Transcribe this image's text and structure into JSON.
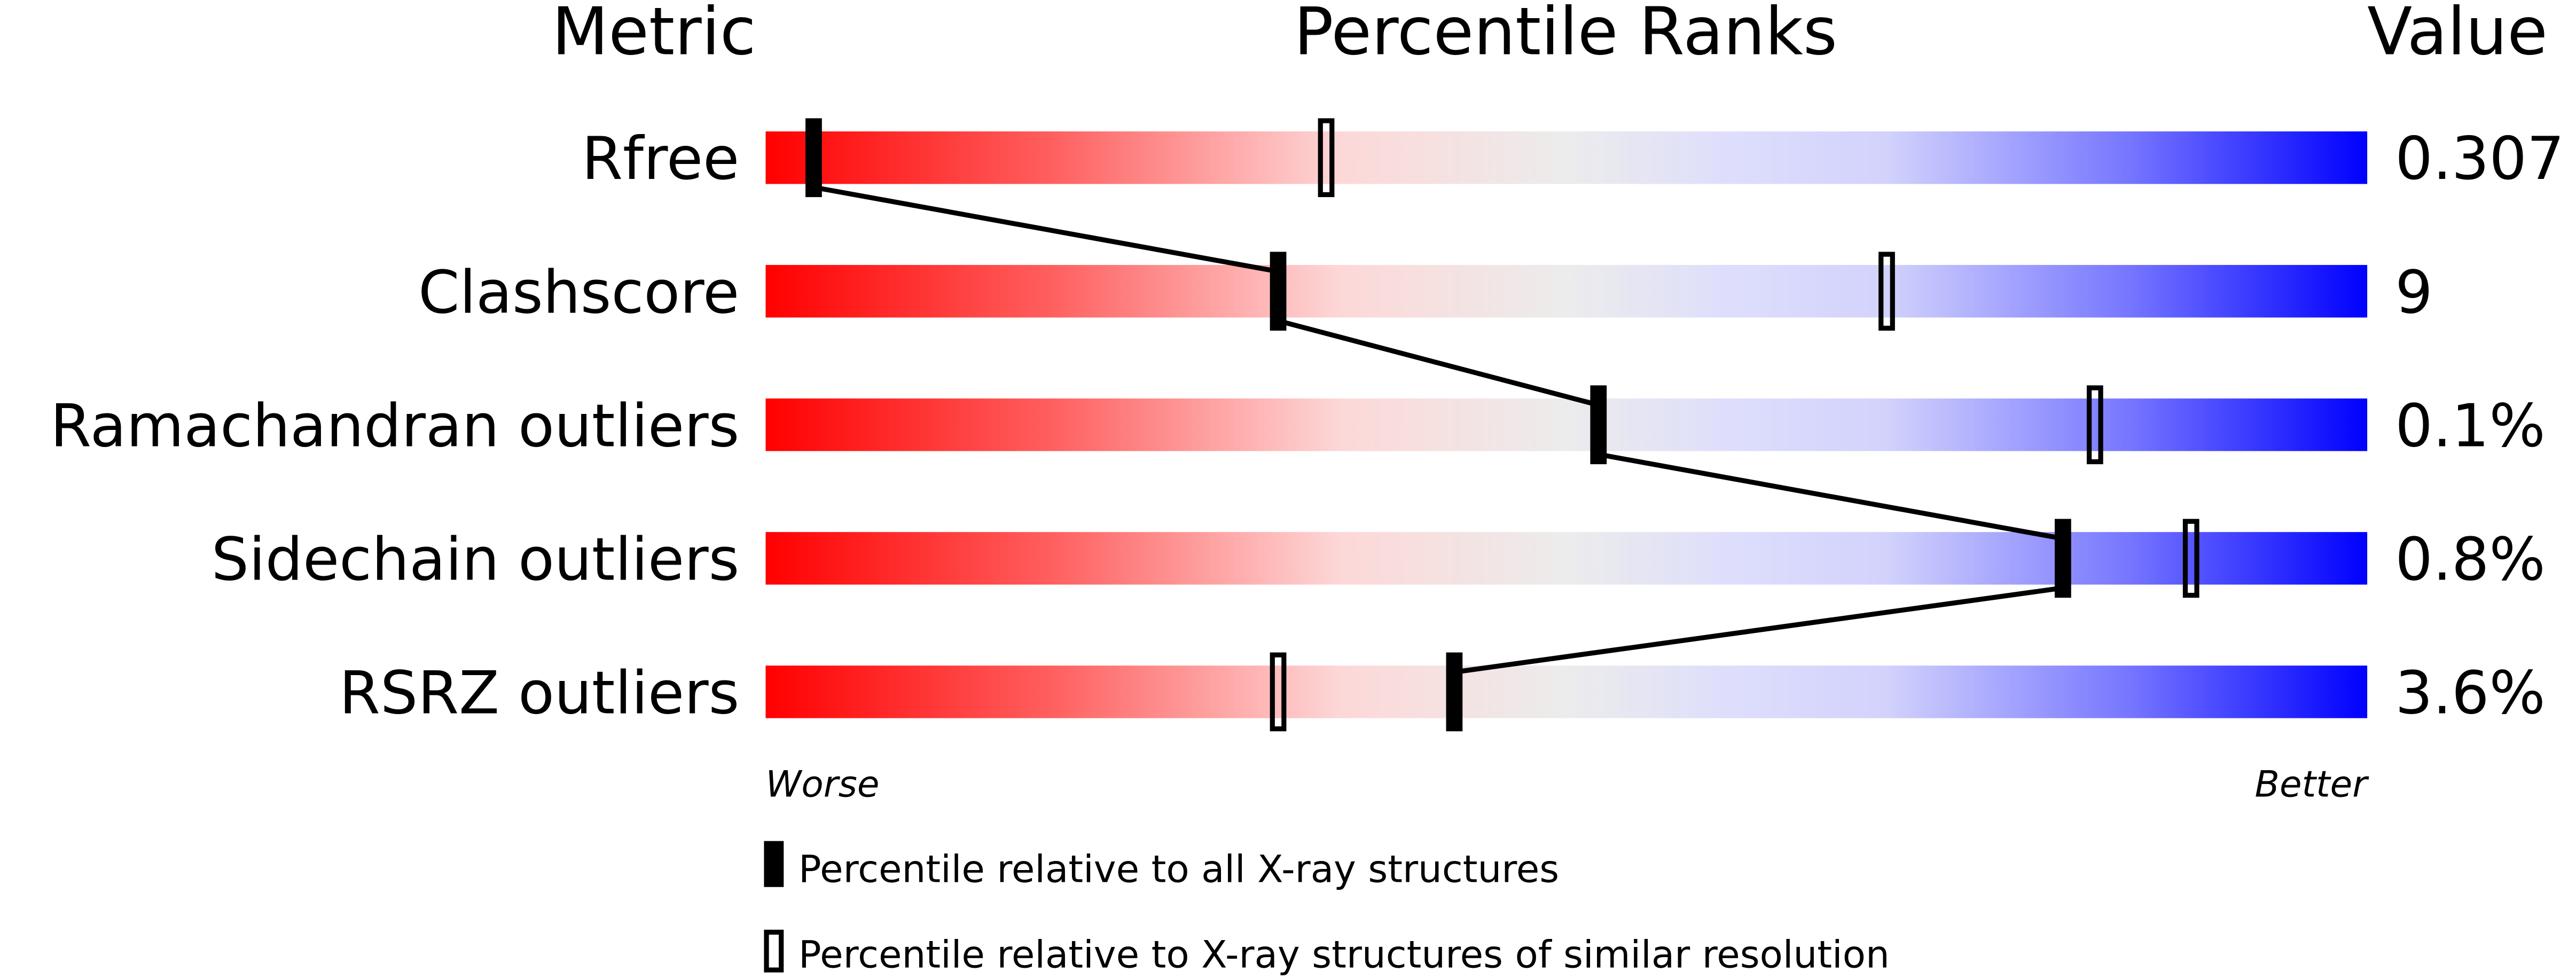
{
  "chart_data": {
    "type": "percentile-bar",
    "headers": {
      "metric": "Metric",
      "ranks": "Percentile Ranks",
      "value": "Value"
    },
    "metrics": [
      {
        "name": "Rfree",
        "value": "0.307",
        "percentile_all": 3,
        "percentile_similar": 35
      },
      {
        "name": "Clashscore",
        "value": "9",
        "percentile_all": 32,
        "percentile_similar": 70
      },
      {
        "name": "Ramachandran outliers",
        "value": "0.1%",
        "percentile_all": 52,
        "percentile_similar": 83
      },
      {
        "name": "Sidechain outliers",
        "value": "0.8%",
        "percentile_all": 81,
        "percentile_similar": 89
      },
      {
        "name": "RSRZ outliers",
        "value": "3.6%",
        "percentile_all": 43,
        "percentile_similar": 32
      }
    ],
    "axis": {
      "worse_label": "Worse",
      "better_label": "Better",
      "range": [
        0,
        100
      ]
    },
    "legend": {
      "all": "Percentile relative to all X-ray structures",
      "similar": "Percentile relative to X-ray structures of similar resolution"
    },
    "colors": {
      "worse": "#ff0000",
      "middle": "#eeeeee",
      "better": "#0000ff",
      "marker": "#000000"
    }
  }
}
